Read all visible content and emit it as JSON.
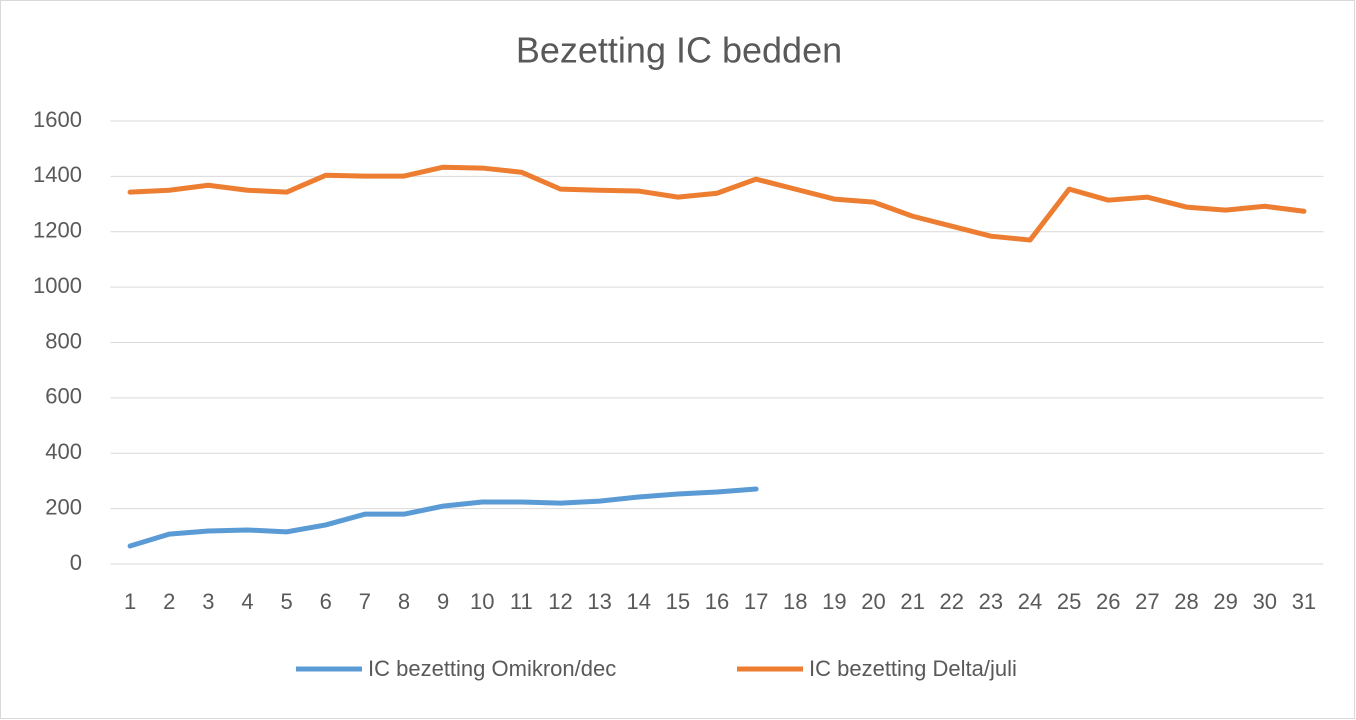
{
  "chart_data": {
    "type": "line",
    "title": "Bezetting IC bedden",
    "categories": [
      1,
      2,
      3,
      4,
      5,
      6,
      7,
      8,
      9,
      10,
      11,
      12,
      13,
      14,
      15,
      16,
      17,
      18,
      19,
      20,
      21,
      22,
      23,
      24,
      25,
      26,
      27,
      28,
      29,
      30,
      31
    ],
    "series": [
      {
        "name": "IC bezetting Omikron/dec",
        "color": "#5b9bd5",
        "values": [
          65,
          108,
          119,
          123,
          116,
          141,
          180,
          180,
          209,
          224,
          224,
          220,
          227,
          242,
          253,
          260,
          271,
          null,
          null,
          null,
          null,
          null,
          null,
          null,
          null,
          null,
          null,
          null,
          null,
          null,
          null
        ]
      },
      {
        "name": "IC bezetting Delta/juli",
        "color": "#ed7d31",
        "values": [
          1343,
          1350,
          1368,
          1350,
          1343,
          1404,
          1401,
          1401,
          1433,
          1430,
          1415,
          1354,
          1350,
          1347,
          1325,
          1339,
          1390,
          1354,
          1318,
          1307,
          1256,
          1220,
          1184,
          1170,
          1354,
          1314,
          1325,
          1289,
          1278,
          1292,
          1274
        ]
      }
    ],
    "ylim": [
      0,
      1600
    ],
    "yticks": [
      0,
      200,
      400,
      600,
      800,
      1000,
      1200,
      1400,
      1600
    ],
    "grid": true,
    "legend": "bottom"
  }
}
